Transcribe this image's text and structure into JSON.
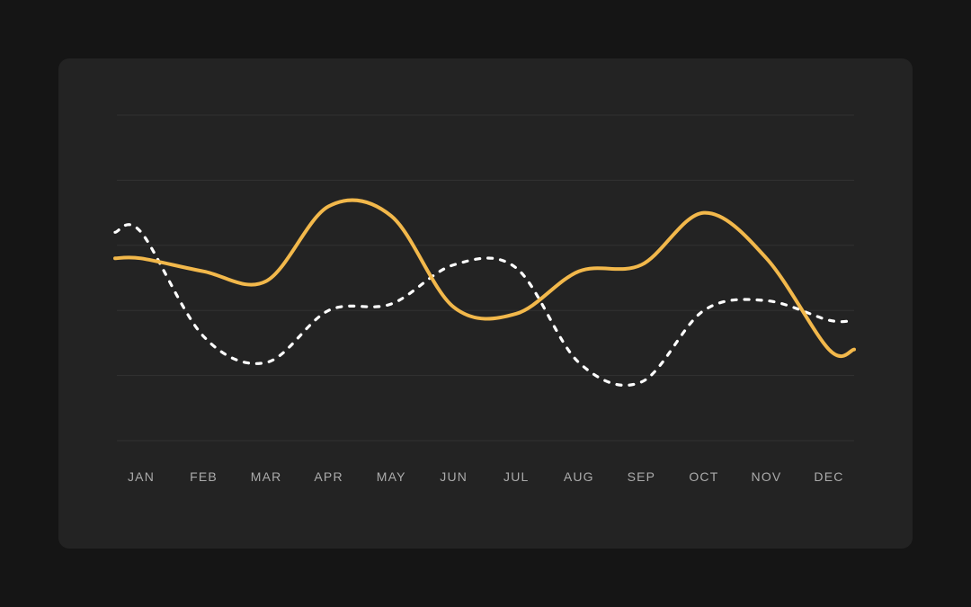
{
  "page": {
    "background_color": "#151515"
  },
  "card": {
    "background_color": "#232323"
  },
  "chart_data": {
    "type": "line",
    "title": "",
    "xlabel": "",
    "ylabel": "",
    "categories": [
      "JAN",
      "FEB",
      "MAR",
      "APR",
      "MAY",
      "JUN",
      "JUL",
      "AUG",
      "SEP",
      "OCT",
      "NOV",
      "DEC"
    ],
    "series": [
      {
        "id": "white-dashed",
        "style": "dashed",
        "color": "#FFFFFF",
        "stroke_width": 3.2,
        "dash": "5 9",
        "values": [
          32,
          16,
          12,
          20,
          21,
          27,
          26.5,
          12,
          9,
          20,
          21.5,
          18.5
        ]
      },
      {
        "id": "amber-solid",
        "style": "solid",
        "color": "#F2B84B",
        "stroke_width": 4,
        "dash": "",
        "values": [
          28,
          26,
          24.5,
          36,
          34.5,
          20.5,
          19.5,
          26,
          27,
          35,
          28,
          14
        ]
      }
    ],
    "ylim": [
      0,
      50
    ],
    "gridline_values": [
      0,
      10,
      20,
      30,
      40,
      50
    ],
    "grid": "horizontal-only",
    "legend": "none",
    "x_tick_color": "#ABABAB",
    "gridline_color": "rgba(255,255,255,0.07)"
  }
}
